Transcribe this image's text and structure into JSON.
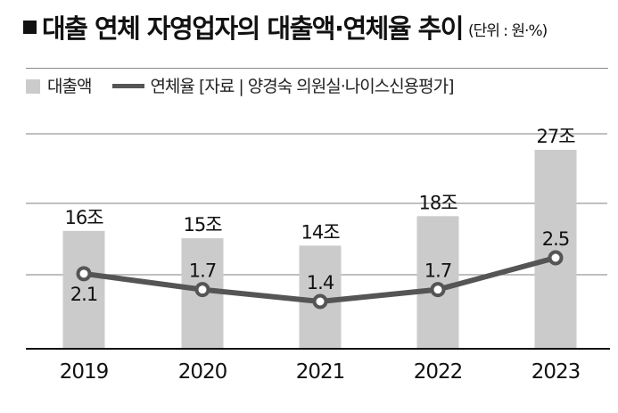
{
  "header": {
    "title": "대출 연체 자영업자의 대출액·연체율 추이",
    "unit": "(단위 : 원·%)"
  },
  "legend": {
    "bar_label": "대출액",
    "line_label": "연체율",
    "source": "[자료 | 양경숙 의원실·나이스신용평가]"
  },
  "colors": {
    "bar": "#cbcbcb",
    "line": "#555555",
    "gridline": "#9a9a9a",
    "axis": "#111111"
  },
  "chart_data": {
    "type": "bar+line",
    "title": "대출 연체 자영업자의 대출액·연체율 추이",
    "subtitle": "(단위 : 원·%)",
    "categories": [
      "2019",
      "2020",
      "2021",
      "2022",
      "2023"
    ],
    "series": [
      {
        "name": "대출액",
        "type": "bar",
        "unit": "조 원",
        "values": [
          16,
          15,
          14,
          18,
          27
        ],
        "labels": [
          "16조",
          "15조",
          "14조",
          "18조",
          "27조"
        ]
      },
      {
        "name": "연체율",
        "type": "line",
        "unit": "%",
        "values": [
          2.1,
          1.7,
          1.4,
          1.7,
          2.5
        ],
        "labels": [
          "2.1",
          "1.7",
          "1.4",
          "1.7",
          "2.5"
        ]
      }
    ],
    "xlabel": "",
    "ylabel": "",
    "grid": true,
    "legend_position": "top-left",
    "source": "양경숙 의원실·나이스신용평가"
  }
}
